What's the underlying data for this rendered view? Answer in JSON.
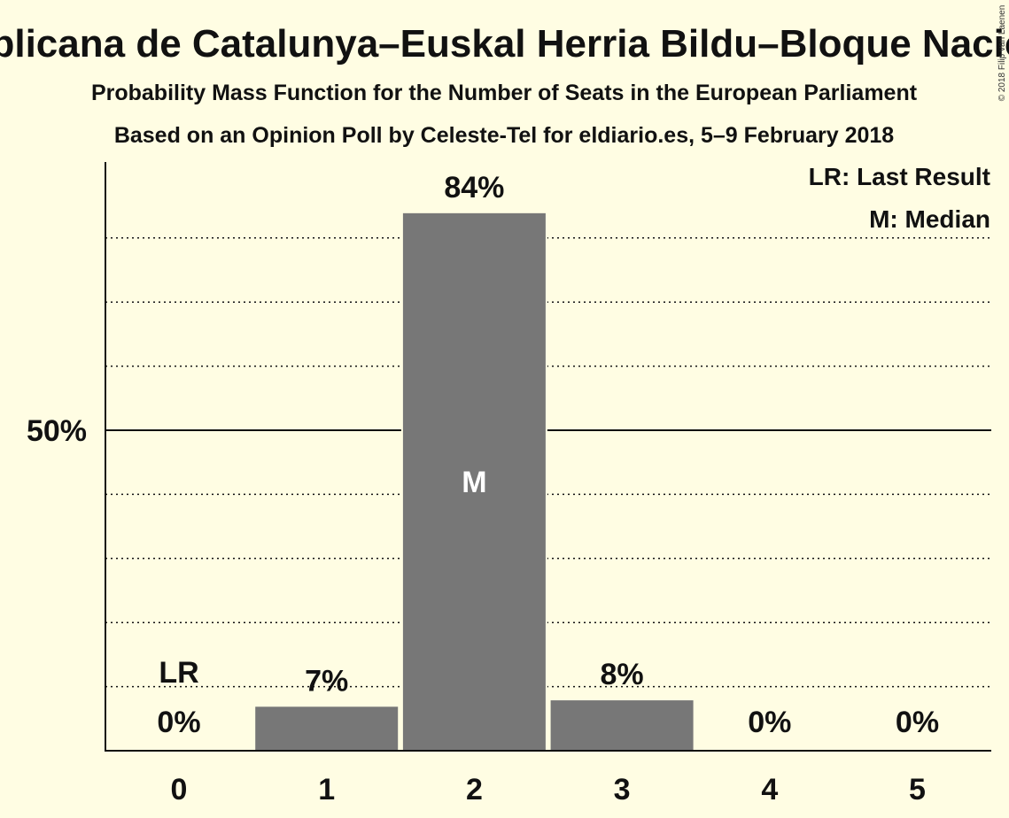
{
  "header": {
    "title": "Esquerra Republicana de Catalunya–Euskal Herria Bildu–Bloque Nacionalista Galego",
    "subtitle": "Probability Mass Function for the Number of Seats in the European Parliament",
    "source": "Based on an Opinion Poll by Celeste-Tel for eldiario.es, 5–9 February 2018",
    "copyright": "© 2018 Filip van Laenen"
  },
  "legend": {
    "last_result": "LR: Last Result",
    "median": "M: Median"
  },
  "chart_data": {
    "type": "bar",
    "categories": [
      "0",
      "1",
      "2",
      "3",
      "4",
      "5"
    ],
    "values": [
      0,
      7,
      84,
      8,
      0,
      0
    ],
    "labels": [
      "0%",
      "7%",
      "84%",
      "8%",
      "0%",
      "0%"
    ],
    "ylim": [
      0,
      92
    ],
    "y_ticks": [
      {
        "value": 50,
        "label": "50%"
      }
    ],
    "gridlines_dotted": [
      10,
      20,
      30,
      40,
      60,
      70,
      80
    ],
    "gridline_solid": 50,
    "last_result_index": 0,
    "last_result_marker": "LR",
    "median_index": 2,
    "median_marker": "M",
    "colors": {
      "background": "#FFFDE3",
      "bar": "#777777",
      "text": "#111111"
    }
  }
}
